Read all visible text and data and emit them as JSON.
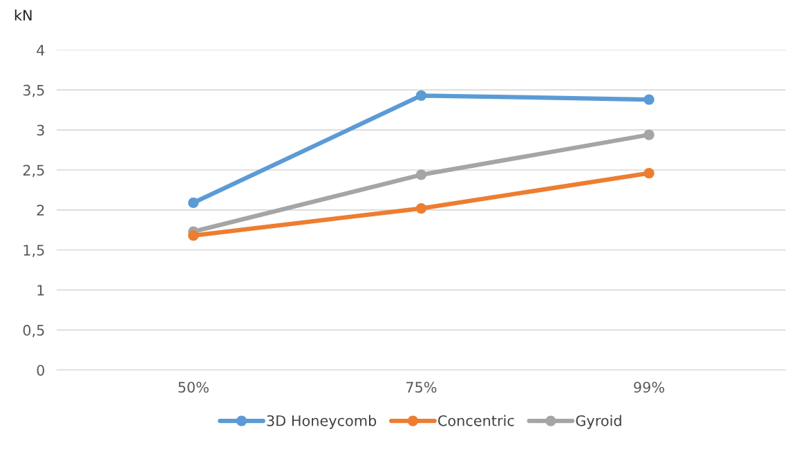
{
  "chart_data": {
    "type": "line",
    "ylabel": "kN",
    "categories": [
      "50%",
      "75%",
      "99%"
    ],
    "series": [
      {
        "name": "3D Honeycomb",
        "color": "#5b9bd5",
        "values": [
          2.09,
          3.43,
          3.38
        ]
      },
      {
        "name": "Concentric",
        "color": "#ed7d31",
        "values": [
          1.68,
          2.02,
          2.46
        ]
      },
      {
        "name": "Gyroid",
        "color": "#a5a5a5",
        "values": [
          1.73,
          2.44,
          2.94
        ]
      }
    ],
    "ylim": [
      0,
      4
    ],
    "yticks": [
      0,
      {
        "value": 0.5,
        "label": "0,5"
      },
      1,
      {
        "value": 1.5,
        "label": "1,5"
      },
      2,
      {
        "value": 2.5,
        "label": "2,5"
      },
      3,
      {
        "value": 3.5,
        "label": "3,5"
      },
      4
    ],
    "grid": "y",
    "legend": "bottom",
    "marker": "circle",
    "line_style": "solid"
  }
}
